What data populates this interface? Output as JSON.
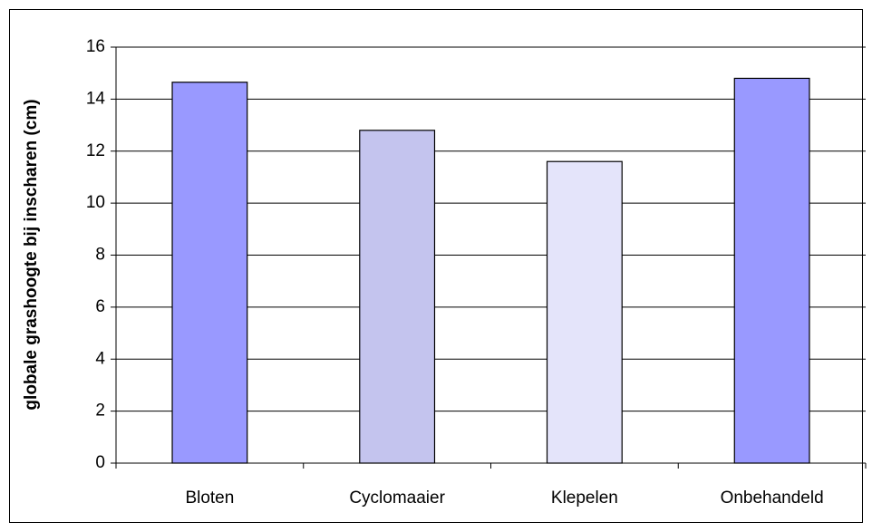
{
  "chart_data": {
    "type": "bar",
    "y_label": "globale grashoogte bij inscharen (cm)",
    "categories": [
      "Bloten",
      "Cyclomaaier",
      "Klepelen",
      "Onbehandeld"
    ],
    "values": [
      14.65,
      12.8,
      11.6,
      14.8
    ],
    "colors": [
      "#9999ff",
      "#c4c4ee",
      "#e4e4fa",
      "#9999ff"
    ],
    "ylim": [
      0,
      16
    ],
    "yticks": [
      0,
      2,
      4,
      6,
      8,
      10,
      12,
      14,
      16
    ],
    "grid": true
  }
}
